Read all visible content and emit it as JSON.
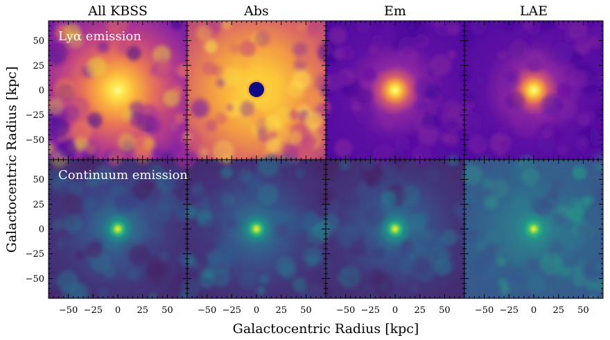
{
  "chart_data": {
    "type": "heatmap",
    "column_titles": [
      "All KBSS",
      "Abs",
      "Em",
      "LAE"
    ],
    "row_labels": [
      "Lyα emission",
      "Continuum emission"
    ],
    "xlabel": "Galactocentric Radius [kpc]",
    "ylabel": "Galactocentric Radius [kpc]",
    "xlim": [
      -70,
      70
    ],
    "ylim": [
      -70,
      70
    ],
    "x_ticks": [
      -50,
      -25,
      0,
      25,
      50
    ],
    "y_ticks": [
      50,
      25,
      0,
      -25,
      -50
    ],
    "x_tick_labels": [
      "−50",
      "−25",
      "0",
      "25",
      "50"
    ],
    "y_tick_labels": [
      "50",
      "25",
      "0",
      "−25",
      "−50"
    ],
    "colormaps": {
      "lya": "plasma",
      "continuum": "viridis"
    },
    "panels": [
      {
        "row": "Lyα emission",
        "column": "All KBSS",
        "colormap": "plasma",
        "feature": "extended diffuse halo centered at (0, 0)"
      },
      {
        "row": "Lyα emission",
        "column": "Abs",
        "colormap": "plasma",
        "feature": "central absorption hole at (0, 0) within bright surroundings"
      },
      {
        "row": "Lyα emission",
        "column": "Em",
        "colormap": "plasma",
        "feature": "compact bright core at (0, 0)"
      },
      {
        "row": "Lyα emission",
        "column": "LAE",
        "colormap": "plasma",
        "feature": "compact bright core at (0, 0)"
      },
      {
        "row": "Continuum emission",
        "column": "All KBSS",
        "colormap": "viridis",
        "feature": "compact point source at (0, 0)"
      },
      {
        "row": "Continuum emission",
        "column": "Abs",
        "colormap": "viridis",
        "feature": "compact point source at (0, 0)"
      },
      {
        "row": "Continuum emission",
        "column": "Em",
        "colormap": "viridis",
        "feature": "compact point source at (0, 0)"
      },
      {
        "row": "Continuum emission",
        "column": "LAE",
        "colormap": "viridis",
        "feature": "compact point source at (0, 0)"
      }
    ]
  }
}
